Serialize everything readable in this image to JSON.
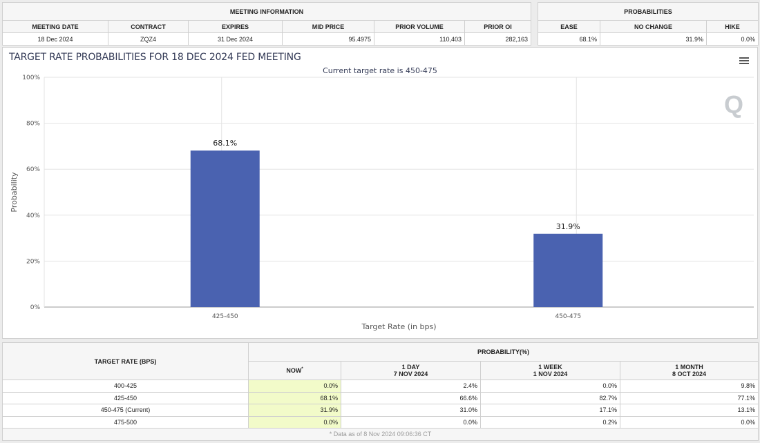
{
  "meeting": {
    "title": "MEETING INFORMATION",
    "headers": [
      "MEETING DATE",
      "CONTRACT",
      "EXPIRES",
      "MID PRICE",
      "PRIOR VOLUME",
      "PRIOR OI"
    ],
    "values": [
      "18 Dec 2024",
      "ZQZ4",
      "31 Dec 2024",
      "95.4975",
      "110,403",
      "282,163"
    ]
  },
  "probabilities": {
    "title": "PROBABILITIES",
    "headers": [
      "EASE",
      "NO CHANGE",
      "HIKE"
    ],
    "values": [
      "68.1%",
      "31.9%",
      "0.0%"
    ]
  },
  "chart_data": {
    "type": "bar",
    "title": "TARGET RATE PROBABILITIES FOR 18 DEC 2024 FED MEETING",
    "subtitle": "Current target rate is 450-475",
    "categories": [
      "425-450",
      "450-475"
    ],
    "values": [
      68.1,
      31.9
    ],
    "data_labels": [
      "68.1%",
      "31.9%"
    ],
    "xlabel": "Target Rate (in bps)",
    "ylabel": "Probability",
    "ylim": [
      0,
      100
    ],
    "yticks": [
      "0%",
      "20%",
      "40%",
      "60%",
      "80%",
      "100%"
    ],
    "grid": true,
    "bar_color": "#4a62b0",
    "logo": "Q"
  },
  "table": {
    "first_header": "TARGET RATE (BPS)",
    "group_header": "PROBABILITY(%)",
    "columns": [
      {
        "l1": "NOW",
        "l2": "",
        "mark": "*"
      },
      {
        "l1": "1 DAY",
        "l2": "7 NOV 2024"
      },
      {
        "l1": "1 WEEK",
        "l2": "1 NOV 2024"
      },
      {
        "l1": "1 MONTH",
        "l2": "8 OCT 2024"
      }
    ],
    "rows": [
      [
        "400-425",
        "0.0%",
        "2.4%",
        "0.0%",
        "9.8%"
      ],
      [
        "425-450",
        "68.1%",
        "66.6%",
        "82.7%",
        "77.1%"
      ],
      [
        "450-475 (Current)",
        "31.9%",
        "31.0%",
        "17.1%",
        "13.1%"
      ],
      [
        "475-500",
        "0.0%",
        "0.0%",
        "0.2%",
        "0.0%"
      ]
    ],
    "footnote": "* Data as of 8 Nov 2024 09:06:36 CT"
  }
}
